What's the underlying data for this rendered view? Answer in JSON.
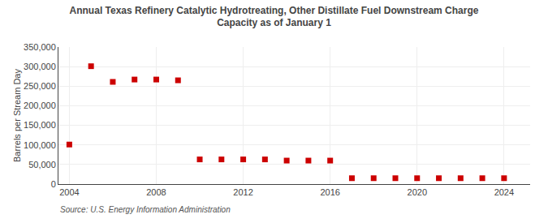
{
  "chart_data": {
    "type": "scatter",
    "title": "Annual Texas Refinery Catalytic Hydrotreating, Other Distillate Fuel Downstream Charge\nCapacity as of January 1",
    "ylabel": "Barrels per Stream Day",
    "annotations": [
      "Source: U.S. Energy Information Administration"
    ],
    "x": [
      2004,
      2005,
      2006,
      2007,
      2008,
      2009,
      2010,
      2011,
      2012,
      2013,
      2014,
      2015,
      2016,
      2017,
      2018,
      2019,
      2020,
      2021,
      2022,
      2023,
      2024
    ],
    "values": [
      101000,
      301000,
      261000,
      267000,
      267000,
      265000,
      63000,
      63000,
      63000,
      63000,
      60000,
      60000,
      60000,
      15000,
      15000,
      15000,
      15000,
      15000,
      15000,
      15000,
      15000
    ],
    "color": "#cc0000",
    "marker": "square",
    "xlim": [
      2003.5,
      2025.2
    ],
    "xticks": [
      2004,
      2008,
      2012,
      2016,
      2020,
      2024
    ],
    "ylim": [
      0,
      350000
    ],
    "yticks": [
      0,
      {
        "value": 50000,
        "label": "50,000"
      },
      {
        "value": 100000,
        "label": "100,000"
      },
      {
        "value": 150000,
        "label": "150,000"
      },
      {
        "value": 200000,
        "label": "200,000"
      },
      {
        "value": 250000,
        "label": "250,000"
      },
      {
        "value": 300000,
        "label": "300,000"
      },
      {
        "value": 350000,
        "label": "350,000"
      }
    ],
    "grid": true
  }
}
